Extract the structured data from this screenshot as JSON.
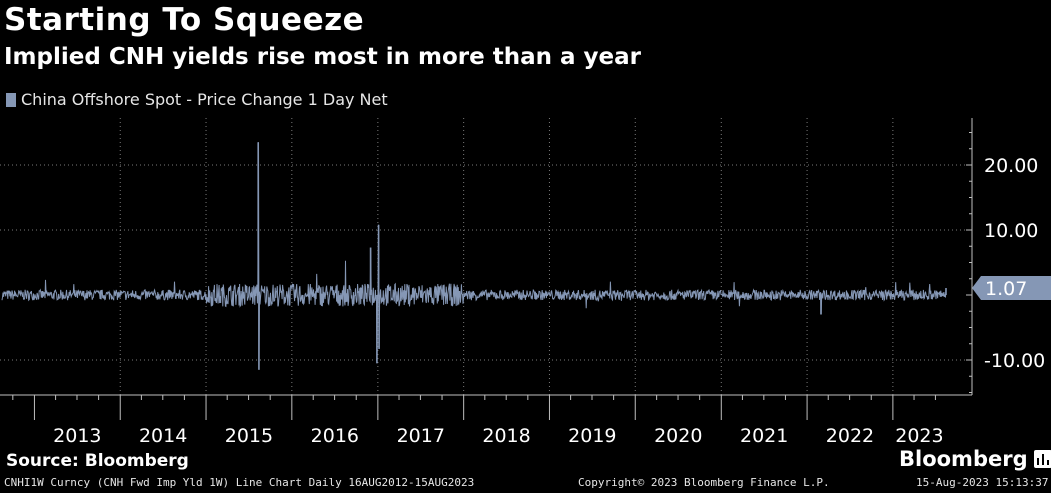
{
  "header": {
    "title": "Starting To Squeeze",
    "subtitle": "Implied CNH yields rise most in more than a year"
  },
  "legend": {
    "label": "China Offshore Spot - Price Change 1 Day Net"
  },
  "chart_data": {
    "type": "line",
    "title": "Starting To Squeeze",
    "subtitle": "Implied CNH yields rise most in more than a year",
    "series_name": "China Offshore Spot - Price Change 1 Day Net",
    "color": "#8597b5",
    "x_range": [
      "2012-08-16",
      "2023-08-15"
    ],
    "ylim": [
      -15.5,
      27.5
    ],
    "y_ticks": [
      20,
      10,
      -10
    ],
    "y_tick_labels": [
      "20.00",
      "10.00",
      "-10.00"
    ],
    "last_value_label": "1.07",
    "x_tick_labels": [
      "2013",
      "2014",
      "2015",
      "2016",
      "2017",
      "2018",
      "2019",
      "2020",
      "2021",
      "2022",
      "2023"
    ],
    "notable_points": [
      {
        "date": "2015-08-11",
        "value": 23.5
      },
      {
        "date": "2015-08-14",
        "value": -11.5
      },
      {
        "date": "2016-12-01",
        "value": 7.3
      },
      {
        "date": "2016-12-28",
        "value": -10.5
      },
      {
        "date": "2017-01-04",
        "value": 10.8
      },
      {
        "date": "2017-01-06",
        "value": -8.3
      },
      {
        "date": "2022-03-01",
        "value": -3.0
      },
      {
        "date": "2023-08-15",
        "value": 1.07
      }
    ],
    "baseline_noise": 0.8
  },
  "footer": {
    "source": "Source: Bloomberg",
    "brand": "Bloomberg",
    "chart_info": "CNHI1W Curncy (CNH Fwd Imp Yld 1W) Line Chart  Daily 16AUG2012-15AUG2023",
    "copyright": "Copyright© 2023 Bloomberg Finance L.P.",
    "timestamp": "15-Aug-2023 15:13:37"
  }
}
